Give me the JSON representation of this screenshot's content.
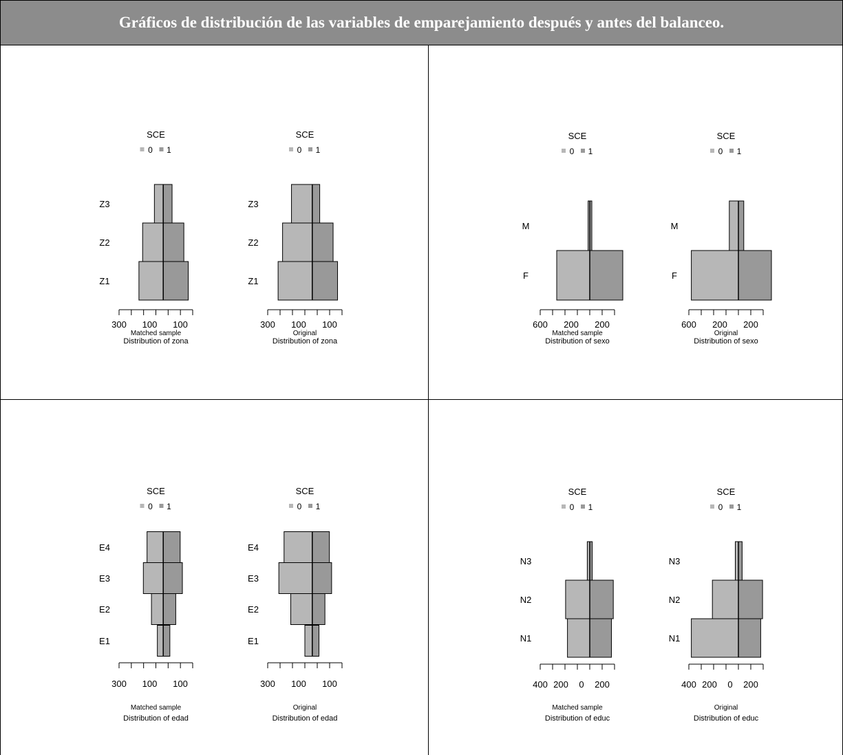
{
  "header": {
    "title": "Gráficos de distribución de las variables de emparejamiento después y antes del balanceo."
  },
  "colors": {
    "group0": "#b7b7b7",
    "group1": "#999999",
    "title_bg": "#8c8c8c"
  },
  "chart_data": [
    {
      "type": "bar",
      "orientation": "horizontal-back-to-back",
      "variable": "zona",
      "legend_title": "SCE",
      "legend": [
        "0",
        "1"
      ],
      "panels": [
        {
          "subtitle": "Matched sample",
          "caption": "Distribution of zona",
          "categories": [
            "Z3",
            "Z2",
            "Z1"
          ],
          "series": [
            {
              "name": "0",
              "values": [
                60,
                140,
                165
              ]
            },
            {
              "name": "1",
              "values": [
                60,
                140,
                170
              ]
            }
          ],
          "xlim": [
            -300,
            200
          ],
          "tick_labels": [
            "300",
            "100",
            "100"
          ]
        },
        {
          "subtitle": "Original",
          "caption": "Distribution of zona",
          "categories": [
            "Z3",
            "Z2",
            "Z1"
          ],
          "series": [
            {
              "name": "0",
              "values": [
                140,
                200,
                230
              ]
            },
            {
              "name": "1",
              "values": [
                50,
                140,
                170
              ]
            }
          ],
          "xlim": [
            -300,
            200
          ],
          "tick_labels": [
            "300",
            "100",
            "100"
          ]
        }
      ]
    },
    {
      "type": "bar",
      "orientation": "horizontal-back-to-back",
      "variable": "sexo",
      "legend_title": "SCE",
      "legend": [
        "0",
        "1"
      ],
      "panels": [
        {
          "subtitle": "Matched sample",
          "caption": "Distribution of sexo",
          "categories": [
            "M",
            "F"
          ],
          "series": [
            {
              "name": "0",
              "values": [
                20,
                400
              ]
            },
            {
              "name": "1",
              "values": [
                25,
                400
              ]
            }
          ],
          "xlim": [
            -600,
            300
          ],
          "tick_labels": [
            "600",
            "200",
            "200"
          ]
        },
        {
          "subtitle": "Original",
          "caption": "Distribution of sexo",
          "categories": [
            "M",
            "F"
          ],
          "series": [
            {
              "name": "0",
              "values": [
                110,
                570
              ]
            },
            {
              "name": "1",
              "values": [
                65,
                400
              ]
            }
          ],
          "xlim": [
            -600,
            300
          ],
          "tick_labels": [
            "600",
            "200",
            "200"
          ]
        }
      ]
    },
    {
      "type": "bar",
      "orientation": "horizontal-back-to-back",
      "variable": "edad",
      "legend_title": "SCE",
      "legend": [
        "0",
        "1"
      ],
      "panels": [
        {
          "subtitle": "Matched sample",
          "caption": "Distribution of edad",
          "categories": [
            "E4",
            "E3",
            "E2",
            "E1"
          ],
          "series": [
            {
              "name": "0",
              "values": [
                110,
                135,
                80,
                40
              ]
            },
            {
              "name": "1",
              "values": [
                115,
                130,
                85,
                45
              ]
            }
          ],
          "xlim": [
            -300,
            200
          ],
          "tick_labels": [
            "300",
            "100",
            "100"
          ]
        },
        {
          "subtitle": "Original",
          "caption": "Distribution of edad",
          "categories": [
            "E4",
            "E3",
            "E2",
            "E1"
          ],
          "series": [
            {
              "name": "0",
              "values": [
                190,
                225,
                145,
                50
              ]
            },
            {
              "name": "1",
              "values": [
                115,
                130,
                85,
                45
              ]
            }
          ],
          "xlim": [
            -300,
            200
          ],
          "tick_labels": [
            "300",
            "100",
            "100"
          ]
        }
      ]
    },
    {
      "type": "bar",
      "orientation": "horizontal-back-to-back",
      "variable": "educ",
      "legend_title": "SCE",
      "legend": [
        "0",
        "1"
      ],
      "panels": [
        {
          "subtitle": "Matched sample",
          "caption": "Distribution of educ",
          "categories": [
            "N3",
            "N2",
            "N1"
          ],
          "series": [
            {
              "name": "0",
              "values": [
                20,
                195,
                180
              ]
            },
            {
              "name": "1",
              "values": [
                20,
                190,
                175
              ]
            }
          ],
          "xlim": [
            -400,
            200
          ],
          "tick_labels": [
            "400",
            "200",
            "0",
            "200"
          ]
        },
        {
          "subtitle": "Original",
          "caption": "Distribution of educ",
          "categories": [
            "N3",
            "N2",
            "N1"
          ],
          "series": [
            {
              "name": "0",
              "values": [
                25,
                210,
                380
              ]
            },
            {
              "name": "1",
              "values": [
                30,
                195,
                180
              ]
            }
          ],
          "xlim": [
            -400,
            200
          ],
          "tick_labels": [
            "400",
            "200",
            "0",
            "200"
          ]
        }
      ]
    }
  ]
}
